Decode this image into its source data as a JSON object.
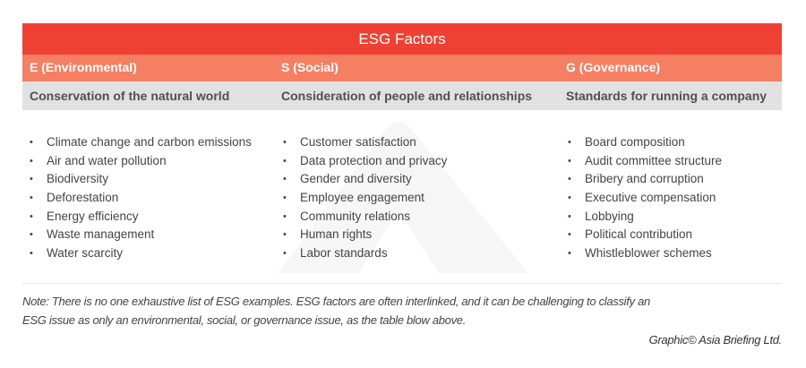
{
  "title": "ESG Factors",
  "columns": [
    {
      "header": "E (Environmental)",
      "subheader": "Conservation of the natural world",
      "items": [
        "Climate change and carbon emissions",
        "Air and water pollution",
        "Biodiversity",
        "Deforestation",
        "Energy efficiency",
        "Waste management",
        "Water scarcity"
      ]
    },
    {
      "header": "S (Social)",
      "subheader": "Consideration of people and relationships",
      "items": [
        "Customer satisfaction",
        "Data protection and privacy",
        "Gender and diversity",
        "Employee engagement",
        "Community relations",
        "Human rights",
        "Labor standards"
      ]
    },
    {
      "header": "G (Governance)",
      "subheader": "Standards for running a company",
      "items": [
        "Board composition",
        "Audit committee structure",
        "Bribery and corruption",
        "Executive compensation",
        "Lobbying",
        "Political contribution",
        "Whistleblower schemes"
      ]
    }
  ],
  "note": "Note: There is no one exhaustive list of ESG examples. ESG factors are often interlinked, and it can be challenging to classify an ESG issue as only an environmental, social, or governance issue, as the table blow above.",
  "credit": "Graphic© Asia Briefing Ltd.",
  "colors": {
    "title_bg": "#ef4133",
    "header_bg": "#f47f63",
    "subheader_bg": "#e1e1e1"
  }
}
